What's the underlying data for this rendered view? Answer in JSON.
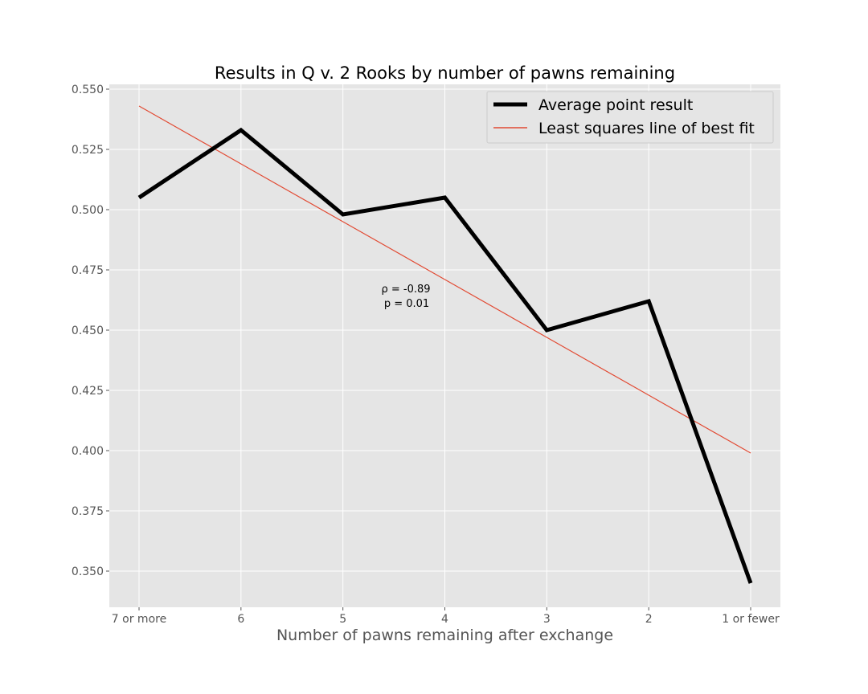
{
  "chart_data": {
    "type": "line",
    "title": "Results in Q v. 2 Rooks by number of pawns remaining",
    "xlabel": "Number of pawns remaining after exchange",
    "ylabel": "",
    "categories": [
      "7 or more",
      "6",
      "5",
      "4",
      "3",
      "2",
      "1 or fewer"
    ],
    "ylim": [
      0.335,
      0.552
    ],
    "yticks": [
      0.35,
      0.375,
      0.4,
      0.425,
      0.45,
      0.475,
      0.5,
      0.525,
      0.55
    ],
    "ytick_labels": [
      "0.350",
      "0.375",
      "0.400",
      "0.425",
      "0.450",
      "0.475",
      "0.500",
      "0.525",
      "0.550"
    ],
    "grid": true,
    "legend_position": "top-right",
    "series": [
      {
        "name": "Average point result",
        "values": [
          0.505,
          0.533,
          0.498,
          0.505,
          0.45,
          0.462,
          0.345
        ],
        "color": "#000000"
      },
      {
        "name": "Least squares line of best fit",
        "values": [
          0.543,
          0.519,
          0.495,
          0.471,
          0.447,
          0.423,
          0.399
        ],
        "color": "#e24a33"
      }
    ],
    "annotation": {
      "line1": "ρ = -0.89",
      "line2": "p = 0.01"
    }
  }
}
